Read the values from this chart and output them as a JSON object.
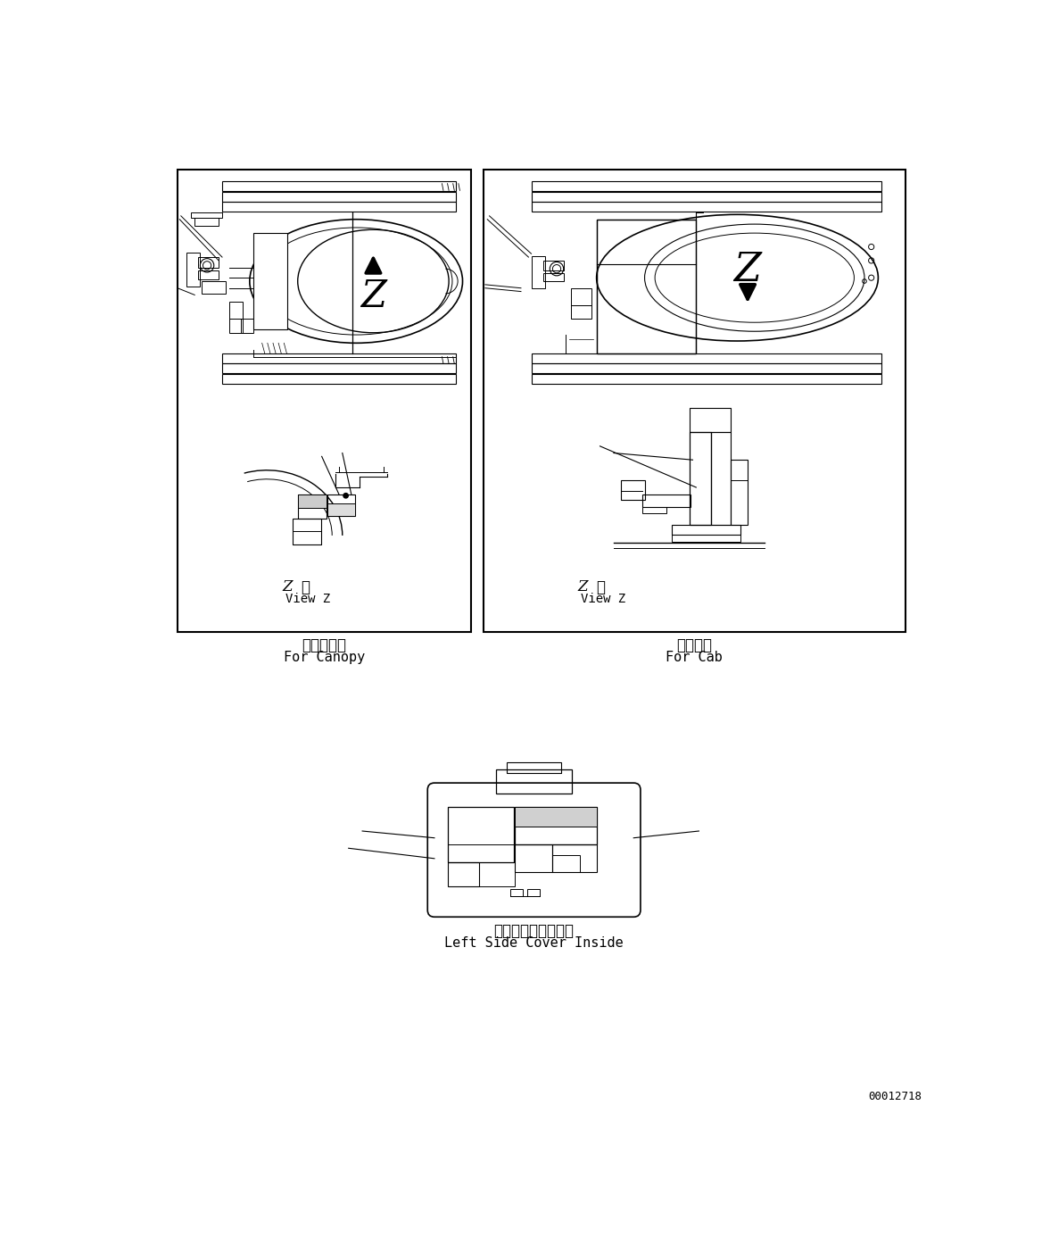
{
  "bg_color": "#ffffff",
  "line_color": "#000000",
  "page_number": "00012718",
  "left_panel": {
    "title_jp": "キャノピ用",
    "title_en": "For Canopy"
  },
  "right_panel": {
    "title_jp": "キャブ用",
    "title_en": "For Cab"
  },
  "bottom_panel": {
    "title_jp": "左サイドカバー内側",
    "title_en": "Left Side Cover Inside"
  }
}
